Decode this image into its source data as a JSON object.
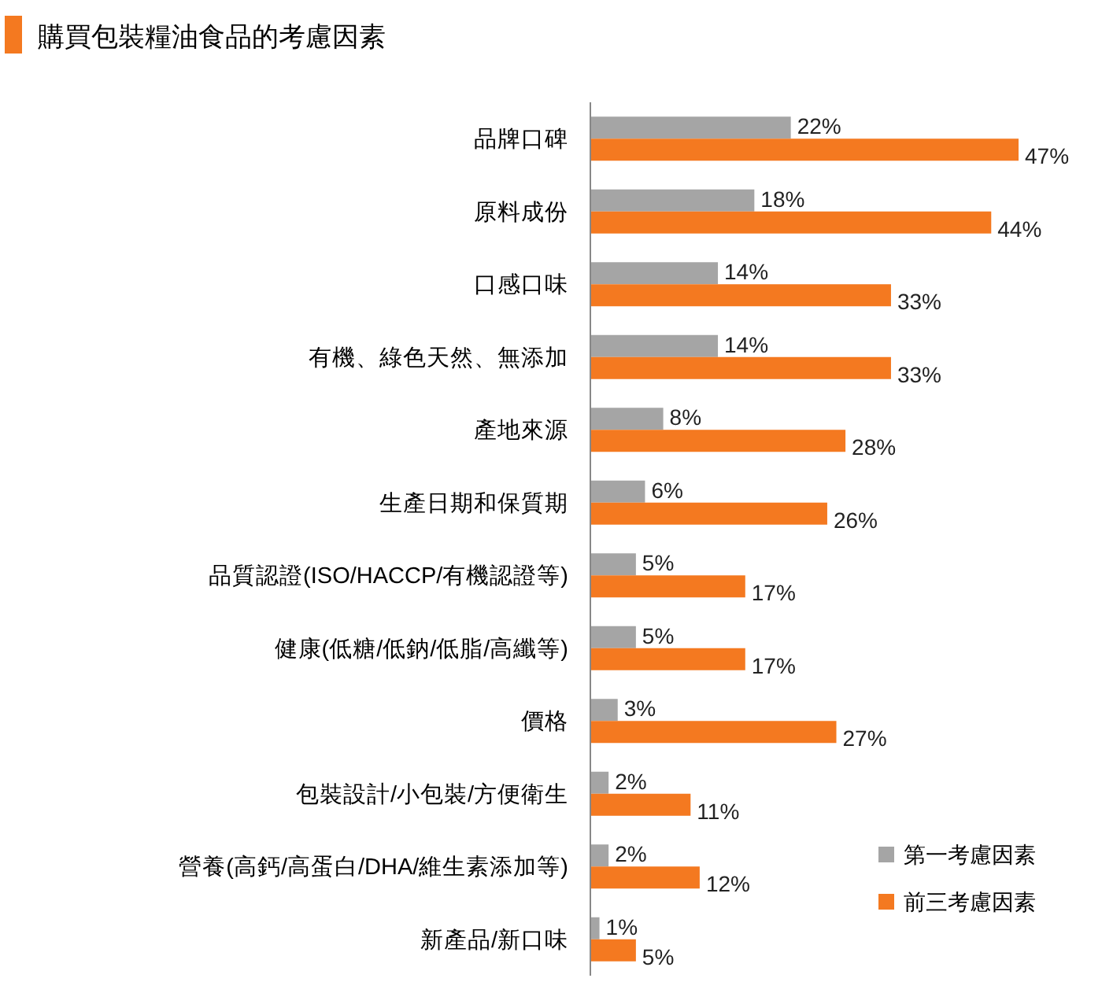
{
  "chart_data": {
    "type": "bar",
    "orientation": "horizontal",
    "title": "購買包裝糧油食品的考慮因素",
    "categories": [
      "品牌口碑",
      "原料成份",
      "口感口味",
      "有機、綠色天然、無添加",
      "產地來源",
      "生產日期和保質期",
      "品質認證(ISO/HACCP/有機認證等)",
      "健康(低糖/低鈉/低脂/高纖等)",
      "價格",
      "包裝設計/小包裝/方便衛生",
      "營養(高鈣/高蛋白/DHA/維生素添加等)",
      "新產品/新口味"
    ],
    "series": [
      {
        "name": "第一考慮因素",
        "color": "#a5a5a5",
        "values": [
          22,
          18,
          14,
          14,
          8,
          6,
          5,
          5,
          3,
          2,
          2,
          1
        ],
        "value_labels": [
          "22%",
          "18%",
          "14%",
          "14%",
          "8%",
          "6%",
          "5%",
          "5%",
          "3%",
          "2%",
          "2%",
          "1%"
        ]
      },
      {
        "name": "前三考慮因素",
        "color": "#f47920",
        "values": [
          47,
          44,
          33,
          33,
          28,
          26,
          17,
          17,
          27,
          11,
          12,
          5
        ],
        "value_labels": [
          "47%",
          "44%",
          "33%",
          "33%",
          "28%",
          "26%",
          "17%",
          "17%",
          "27%",
          "11%",
          "12%",
          "5%"
        ]
      }
    ],
    "legend": "bottom right",
    "grid": false
  }
}
